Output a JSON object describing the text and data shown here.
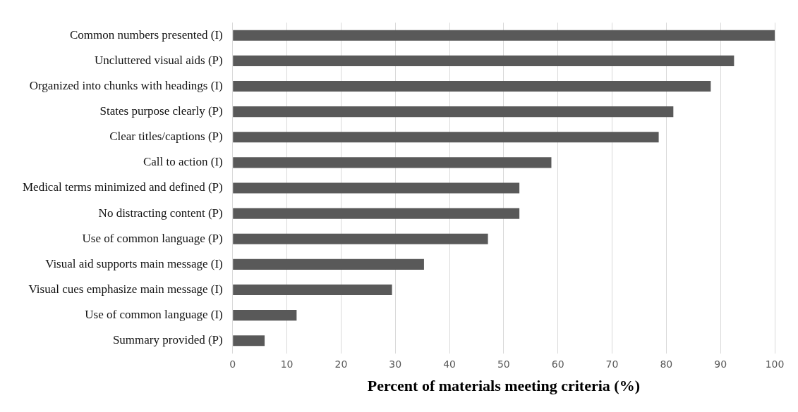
{
  "chart_data": {
    "type": "bar",
    "orientation": "horizontal",
    "xlabel": "Percent of materials meeting criteria (%)",
    "categories": [
      "Common numbers presented (I)",
      "Uncluttered visual aids (P)",
      "Organized into chunks with headings (I)",
      "States purpose clearly (P)",
      "Clear titles/captions (P)",
      "Call to action (I)",
      "Medical terms minimized and defined (P)",
      "No distracting content (P)",
      "Use of common language (P)",
      "Visual aid supports main message (I)",
      "Visual cues emphasize main message (I)",
      "Use of common language (I)",
      "Summary provided (P)"
    ],
    "values": [
      100,
      92.5,
      88.2,
      81.3,
      78.6,
      58.8,
      52.9,
      52.9,
      47.1,
      35.3,
      29.4,
      11.8,
      5.9
    ],
    "color": "#595959",
    "xlim": [
      0,
      100
    ],
    "xticks": [
      0,
      10,
      20,
      30,
      40,
      50,
      60,
      70,
      80,
      90,
      100
    ],
    "grid": "x",
    "legend": false
  }
}
